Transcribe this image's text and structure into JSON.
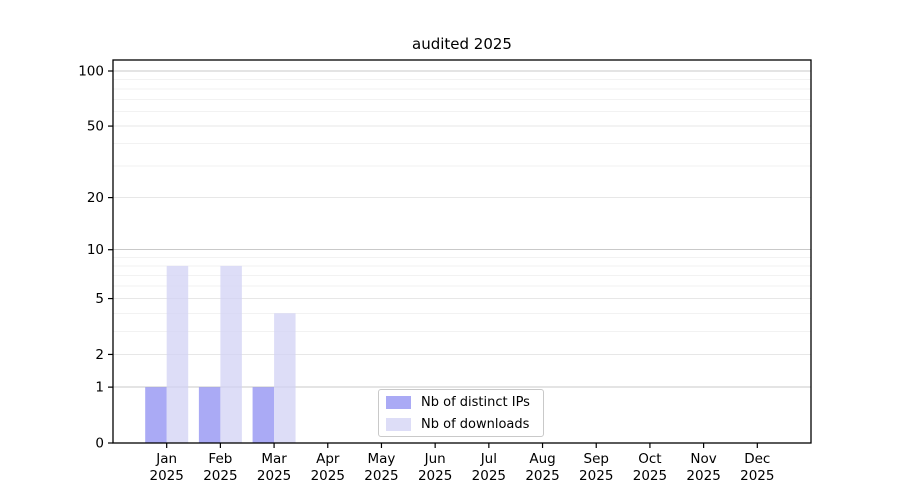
{
  "chart_data": {
    "type": "bar",
    "title": "audited 2025",
    "categories": [
      [
        "Jan",
        "2025"
      ],
      [
        "Feb",
        "2025"
      ],
      [
        "Mar",
        "2025"
      ],
      [
        "Apr",
        "2025"
      ],
      [
        "May",
        "2025"
      ],
      [
        "Jun",
        "2025"
      ],
      [
        "Jul",
        "2025"
      ],
      [
        "Aug",
        "2025"
      ],
      [
        "Sep",
        "2025"
      ],
      [
        "Oct",
        "2025"
      ],
      [
        "Nov",
        "2025"
      ],
      [
        "Dec",
        "2025"
      ]
    ],
    "series": [
      {
        "name": "Nb of distinct IPs",
        "color": "#8e8ef2",
        "opacity": 0.75,
        "values": [
          1,
          1,
          1,
          0,
          0,
          0,
          0,
          0,
          0,
          0,
          0,
          0
        ]
      },
      {
        "name": "Nb of downloads",
        "color": "#d2d2f4",
        "opacity": 0.75,
        "values": [
          8,
          8,
          4,
          0,
          0,
          0,
          0,
          0,
          0,
          0,
          0,
          0
        ]
      }
    ],
    "yscale": "log1p",
    "ylim": [
      0,
      115
    ],
    "yticks": [
      0,
      1,
      2,
      5,
      10,
      20,
      50,
      100
    ],
    "grid": {
      "on": true,
      "decade_ticks": [
        1,
        10,
        100
      ],
      "minor_ticks": [
        3,
        4,
        6,
        7,
        8,
        9,
        30,
        40,
        60,
        70,
        80,
        90
      ],
      "decade_color": "#c9c9c9",
      "major_color": "#e7e7e7",
      "minor_color": "#f2f2f2"
    },
    "legend": {
      "position": "lower center"
    },
    "axes": {
      "spine_color": "#000000",
      "tick_color": "#000000",
      "label_color": "#000000"
    }
  }
}
